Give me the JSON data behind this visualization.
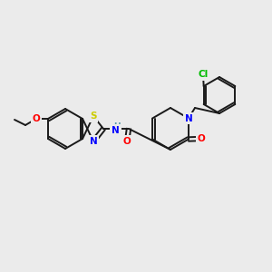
{
  "background_color": "#ebebeb",
  "bond_color": "#1a1a1a",
  "atom_colors": {
    "N": "#0000ff",
    "O": "#ff0000",
    "S": "#cccc00",
    "Cl": "#00bb00",
    "NH": "#5599aa",
    "C": "#1a1a1a"
  },
  "fig_width": 3.0,
  "fig_height": 3.0,
  "dpi": 100
}
